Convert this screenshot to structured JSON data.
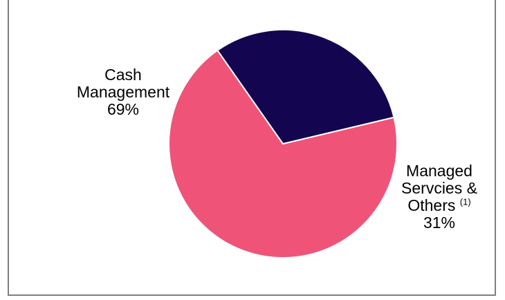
{
  "chart_data": {
    "type": "pie",
    "slices": [
      {
        "label_lines": [
          "Cash",
          "Management"
        ],
        "pct_label": "69%",
        "value": 69,
        "color": "#ef5478"
      },
      {
        "label_lines": [
          "Managed",
          "Servcies &",
          "Others"
        ],
        "footnote": "(1)",
        "pct_label": "31%",
        "value": 31,
        "color": "#130550"
      }
    ]
  }
}
